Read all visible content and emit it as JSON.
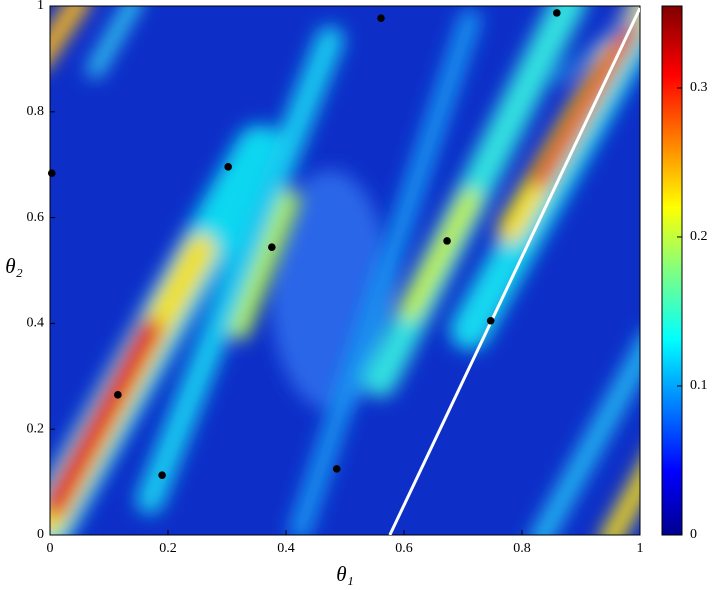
{
  "chart_data": {
    "type": "scatter",
    "xlabel": "θ₁",
    "ylabel": "θ₂",
    "xlim": [
      0,
      1
    ],
    "ylim": [
      0,
      1
    ],
    "xticks": [
      0,
      0.2,
      0.4,
      0.6,
      0.8,
      1
    ],
    "yticks": [
      0,
      0.2,
      0.4,
      0.6,
      0.8,
      1
    ],
    "series": [
      {
        "color": "#000000",
        "x": [
          0.003,
          0.115,
          0.19,
          0.302,
          0.376,
          0.486,
          0.561,
          0.673,
          0.747,
          0.859
        ],
        "y": [
          0.684,
          0.265,
          0.113,
          0.696,
          0.544,
          0.125,
          0.977,
          0.556,
          0.405,
          0.987
        ]
      }
    ],
    "line": {
      "color": "#ffffff",
      "x": [
        0.576,
        1
      ],
      "y": [
        0,
        0.996
      ]
    },
    "colorbar": {
      "colormap": "jet",
      "clim": [
        0,
        0.355
      ],
      "ticks": [
        0,
        0.1,
        0.2,
        0.3
      ]
    }
  }
}
